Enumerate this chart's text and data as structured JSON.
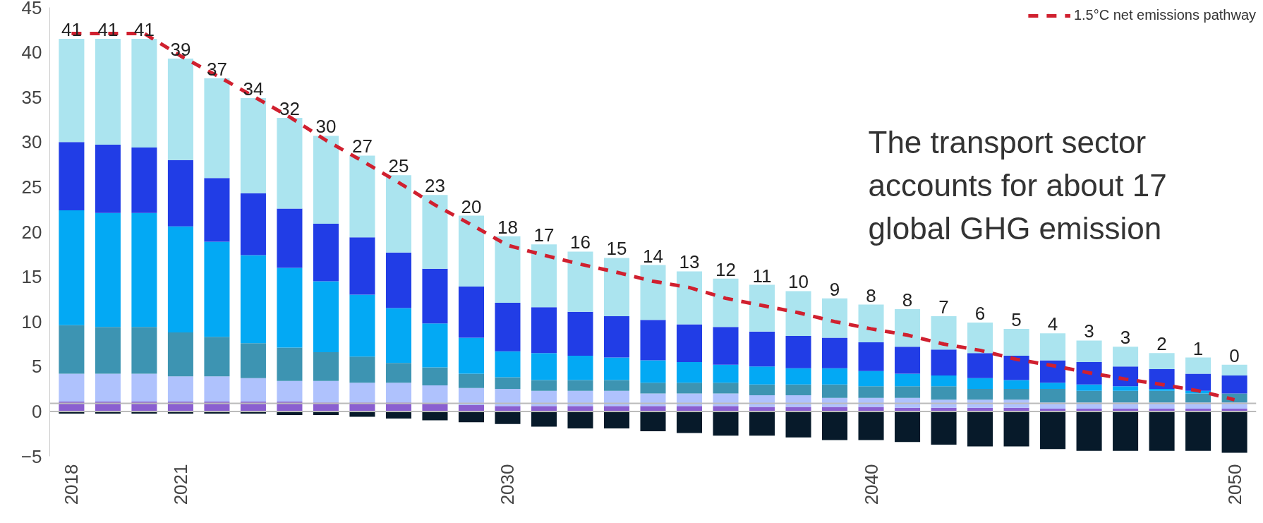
{
  "chart_data": {
    "type": "bar",
    "stacked": true,
    "categories": [
      "2018",
      null,
      null,
      "2021",
      null,
      null,
      null,
      null,
      null,
      null,
      null,
      null,
      "2030",
      null,
      null,
      null,
      null,
      null,
      null,
      null,
      null,
      null,
      "2040",
      null,
      null,
      null,
      null,
      null,
      null,
      null,
      null,
      null,
      "2050"
    ],
    "series": [
      {
        "color": "#8a5fd0",
        "values": [
          1.1,
          1.1,
          1.1,
          1.1,
          1.1,
          1.1,
          1.1,
          1.0,
          1.0,
          1.0,
          0.9,
          0.7,
          0.6,
          0.6,
          0.6,
          0.6,
          0.6,
          0.6,
          0.6,
          0.5,
          0.5,
          0.5,
          0.5,
          0.4,
          0.4,
          0.4,
          0.4,
          0.3,
          0.3,
          0.3,
          0.3,
          0.3,
          0.3
        ]
      },
      {
        "color": "#afc2fd",
        "values": [
          3.1,
          3.1,
          3.1,
          2.8,
          2.8,
          2.6,
          2.3,
          2.4,
          2.2,
          2.2,
          2.0,
          1.9,
          1.9,
          1.7,
          1.7,
          1.7,
          1.4,
          1.4,
          1.4,
          1.3,
          1.3,
          1.0,
          1.0,
          1.1,
          0.9,
          0.9,
          0.9,
          0.7,
          0.7,
          0.7,
          0.7,
          0.7,
          0.7
        ]
      },
      {
        "color": "#3d94b2",
        "values": [
          5.4,
          5.2,
          5.2,
          4.9,
          4.4,
          3.9,
          3.7,
          3.2,
          2.9,
          2.2,
          2.0,
          1.6,
          1.3,
          1.2,
          1.2,
          1.2,
          1.2,
          1.2,
          1.2,
          1.2,
          1.2,
          1.5,
          1.3,
          1.3,
          1.5,
          1.2,
          1.2,
          1.5,
          1.3,
          1.3,
          1.3,
          1.0,
          1.0
        ]
      },
      {
        "color": "#03a9f4",
        "values": [
          12.8,
          12.7,
          12.7,
          11.8,
          10.6,
          9.8,
          8.9,
          7.9,
          6.9,
          6.1,
          4.9,
          4.0,
          2.9,
          3.0,
          2.7,
          2.5,
          2.5,
          2.3,
          2.0,
          2.0,
          1.8,
          1.8,
          1.7,
          1.4,
          1.2,
          1.2,
          1.0,
          0.7,
          0.7,
          0.5,
          0.2,
          0.3,
          0.0
        ]
      },
      {
        "color": "#213de6",
        "values": [
          7.6,
          7.6,
          7.3,
          7.4,
          7.1,
          6.9,
          6.6,
          6.4,
          6.4,
          6.2,
          6.1,
          5.7,
          5.4,
          5.1,
          4.9,
          4.6,
          4.5,
          4.2,
          4.2,
          3.9,
          3.6,
          3.4,
          3.2,
          3.0,
          2.9,
          2.8,
          2.7,
          2.5,
          2.5,
          2.2,
          2.2,
          1.9,
          2.0
        ]
      },
      {
        "color": "#abe4ef",
        "values": [
          11.5,
          11.8,
          12.1,
          11.3,
          11.1,
          10.6,
          10.1,
          9.8,
          9.1,
          8.6,
          8.2,
          7.9,
          7.4,
          7.0,
          6.7,
          6.5,
          6.1,
          5.9,
          5.4,
          5.2,
          5.0,
          4.4,
          4.2,
          4.2,
          3.7,
          3.4,
          3.0,
          3.0,
          2.4,
          2.2,
          1.8,
          1.8,
          1.2
        ]
      },
      {
        "color": "#071a2a",
        "values": [
          -0.25,
          -0.25,
          -0.25,
          -0.25,
          -0.25,
          -0.25,
          -0.4,
          -0.4,
          -0.6,
          -0.8,
          -1.0,
          -1.2,
          -1.4,
          -1.7,
          -1.9,
          -1.9,
          -2.2,
          -2.4,
          -2.7,
          -2.7,
          -2.9,
          -3.2,
          -3.2,
          -3.4,
          -3.7,
          -3.9,
          -3.9,
          -4.2,
          -4.4,
          -4.4,
          -4.4,
          -4.4,
          -4.6
        ]
      },
      {
        "type": "line",
        "name": "1.5°C net emissions pathway",
        "color": "#d0202f",
        "line_style": "dashed",
        "values": [
          42.1,
          42.1,
          42.1,
          39.6,
          37.4,
          35.1,
          32.8,
          30.2,
          27.9,
          25.5,
          23.0,
          20.8,
          18.5,
          17.4,
          16.4,
          15.5,
          14.5,
          13.8,
          12.6,
          11.8,
          11.0,
          10.0,
          9.2,
          8.5,
          7.5,
          6.8,
          5.8,
          5.1,
          4.3,
          3.6,
          3.0,
          2.3,
          1.3
        ]
      }
    ],
    "totals": [
      "41",
      "41",
      "41",
      "39",
      "37",
      "34",
      "32",
      "30",
      "27",
      "25",
      "23",
      "20",
      "18",
      "17",
      "16",
      "15",
      "14",
      "13",
      "12",
      "11",
      "10",
      "9",
      "8",
      "8",
      "7",
      "6",
      "5",
      "4",
      "3",
      "3",
      "2",
      "1",
      "0"
    ],
    "ylim": [
      -5,
      45
    ],
    "yticks": [
      -5,
      0,
      5,
      10,
      15,
      20,
      25,
      30,
      35,
      40,
      45
    ],
    "ref_lines": [
      {
        "axis": "y",
        "value": 0,
        "color": "#bbbbbb"
      },
      {
        "axis": "y",
        "value": 0.9,
        "color": "#bbbbbb"
      }
    ],
    "legend": "top right",
    "grid": false,
    "annotations": [
      "The transport sector\naccounts for about 17\nglobal GHG emission"
    ]
  }
}
